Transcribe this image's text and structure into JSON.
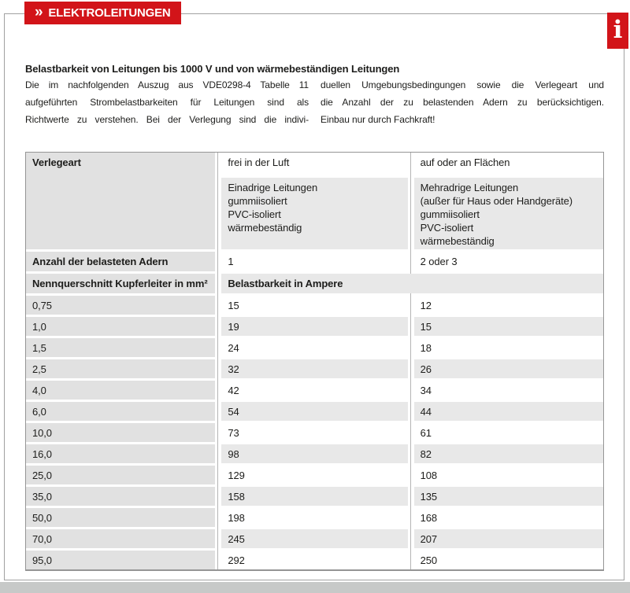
{
  "page": {
    "badge_chevron": "»",
    "badge_label": "ELEKTROLEITUNGEN",
    "info_icon_glyph": "i"
  },
  "colors": {
    "accent_red": "#d21419",
    "col1_gray": "#e1e1e1",
    "alt_row_gray": "#e8e8e8",
    "frame_border": "#a1a1a1",
    "bottom_strip": "#c7c9c8"
  },
  "intro": {
    "heading": "Belastbarkeit von Leitungen bis 1000 V und von wärmebeständigen Leitungen",
    "left_lines": [
      "Die im nachfolgenden Auszug aus VDE0298-4 Tabelle 11",
      "aufgeführten Strombelastbarkeiten für Leitungen sind als",
      "Richtwerte zu verstehen. Bei der Verlegung sind die indivi-"
    ],
    "right_lines": [
      "duellen Umgebungsbedingungen sowie die Verlegeart und",
      "die Anzahl der zu belastenden Adern zu berücksichtigen.",
      "Einbau nur durch Fachkraft!"
    ]
  },
  "table": {
    "verlegeart_label": "Verlegeart",
    "col_frei": "frei in der Luft",
    "col_flaechen": "auf oder an Flächen",
    "desc_einadrig": [
      "Einadrige Leitungen",
      "gummiisoliert",
      "PVC-isoliert",
      "wärmebeständig"
    ],
    "desc_mehradrig": [
      "Mehradrige Leitungen",
      "(außer für Haus oder Handgeräte)",
      "gummiisoliert",
      "PVC-isoliert",
      "wärmebeständig"
    ],
    "adern_label": "Anzahl der belasteten Adern",
    "adern_frei": "1",
    "adern_flaechen": "2 oder 3",
    "querschnitt_label": "Nennquerschnitt Kupferleiter in mm²",
    "belastbarkeit_label": "Belastbarkeit in Ampere",
    "rows": [
      {
        "mm2": "0,75",
        "frei": "15",
        "flaechen": "12"
      },
      {
        "mm2": "1,0",
        "frei": "19",
        "flaechen": "15"
      },
      {
        "mm2": "1,5",
        "frei": "24",
        "flaechen": "18"
      },
      {
        "mm2": "2,5",
        "frei": "32",
        "flaechen": "26"
      },
      {
        "mm2": "4,0",
        "frei": "42",
        "flaechen": "34"
      },
      {
        "mm2": "6,0",
        "frei": "54",
        "flaechen": "44"
      },
      {
        "mm2": "10,0",
        "frei": "73",
        "flaechen": "61"
      },
      {
        "mm2": "16,0",
        "frei": "98",
        "flaechen": "82"
      },
      {
        "mm2": "25,0",
        "frei": "129",
        "flaechen": "108"
      },
      {
        "mm2": "35,0",
        "frei": "158",
        "flaechen": "135"
      },
      {
        "mm2": "50,0",
        "frei": "198",
        "flaechen": "168"
      },
      {
        "mm2": "70,0",
        "frei": "245",
        "flaechen": "207"
      },
      {
        "mm2": "95,0",
        "frei": "292",
        "flaechen": "250"
      }
    ]
  }
}
